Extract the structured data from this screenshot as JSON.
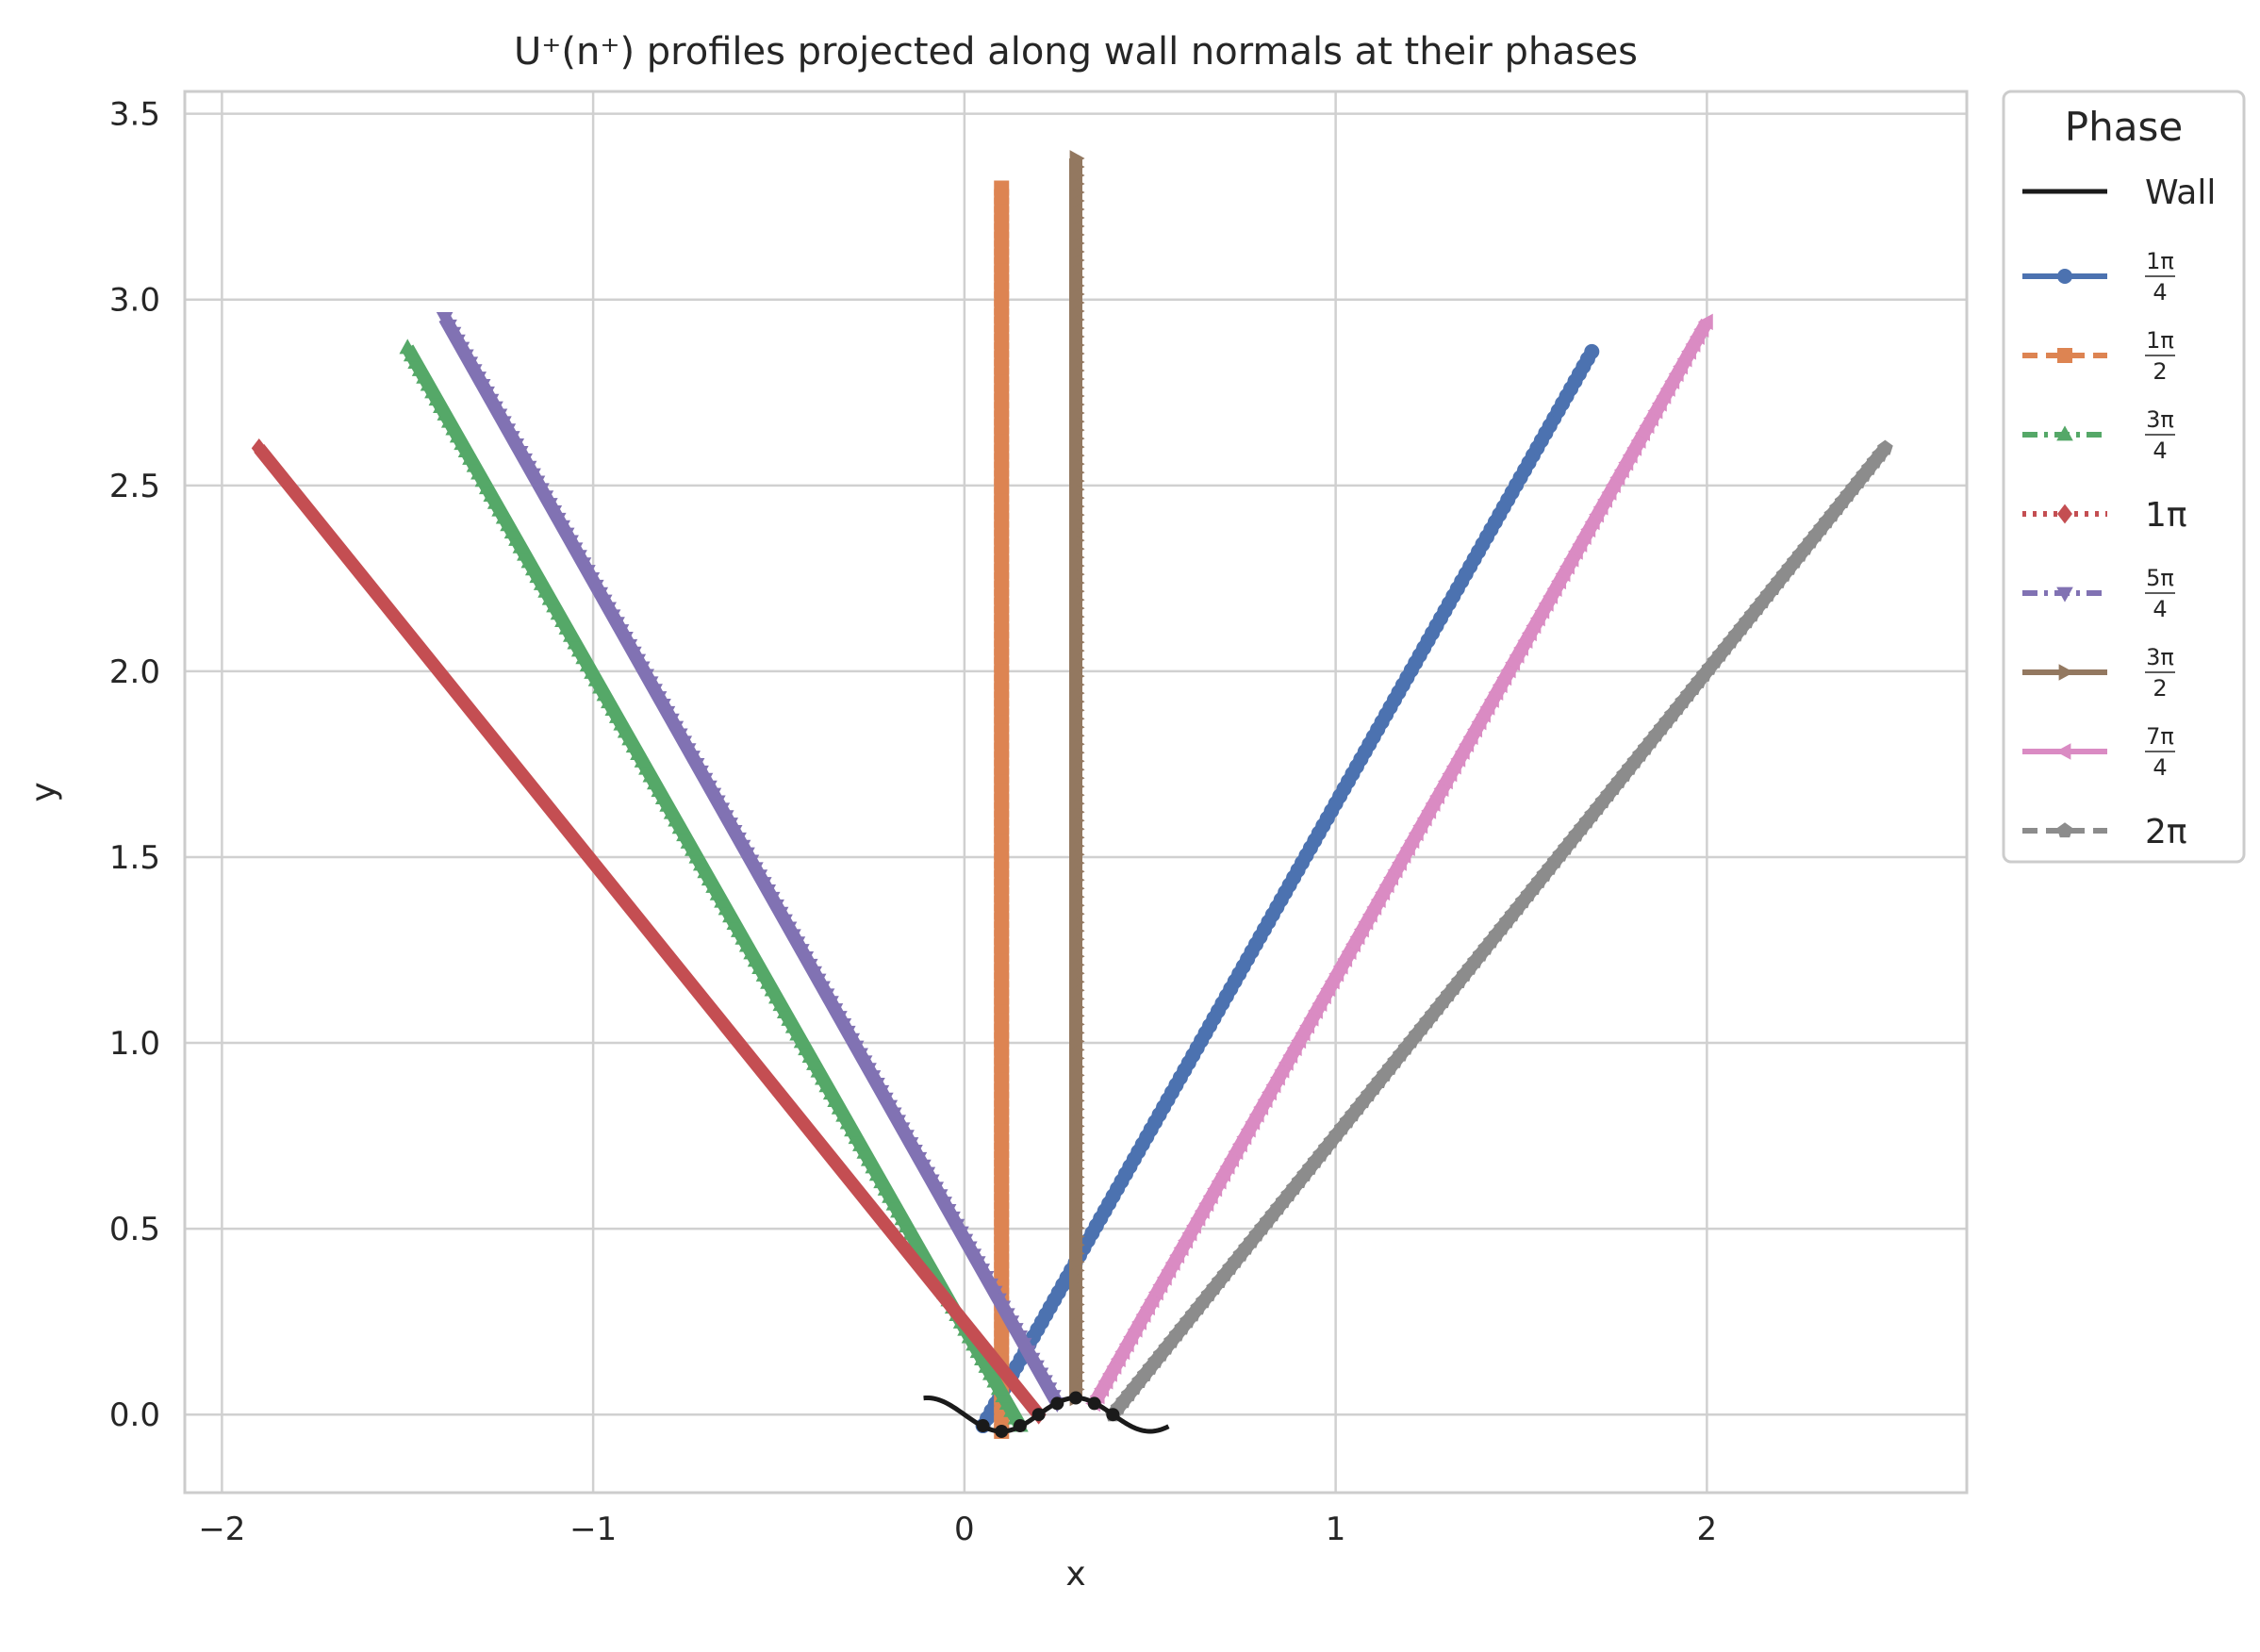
{
  "chart_data": {
    "type": "line",
    "title": "U⁺(n⁺) profiles projected along wall normals at their phases",
    "xlabel": "x",
    "ylabel": "y",
    "xlim": [
      -2.1,
      2.7
    ],
    "ylim": [
      -0.21,
      3.56
    ],
    "xticks": [
      -2,
      -1,
      0,
      1,
      2
    ],
    "xtick_labels": [
      "−2",
      "−1",
      "0",
      "1",
      "2"
    ],
    "yticks": [
      0.0,
      0.5,
      1.0,
      1.5,
      2.0,
      2.5,
      3.0,
      3.5
    ],
    "ytick_labels": [
      "0.0",
      "0.5",
      "1.0",
      "1.5",
      "2.0",
      "2.5",
      "3.0",
      "3.5"
    ],
    "grid": true,
    "legend": {
      "title": "Phase",
      "placement": "outside-right"
    },
    "wall": {
      "name": "Wall",
      "color": "#1a1a1a",
      "x_range": [
        -0.11,
        0.55
      ],
      "amplitude": 0.045,
      "marker_points": [
        [
          0.05,
          -0.03
        ],
        [
          0.1,
          -0.045
        ],
        [
          0.15,
          -0.03
        ],
        [
          0.2,
          0.0
        ],
        [
          0.25,
          0.03
        ],
        [
          0.3,
          0.045
        ],
        [
          0.35,
          0.03
        ],
        [
          0.4,
          0.0
        ]
      ]
    },
    "series": [
      {
        "name": "1π/4",
        "numerator": "1π",
        "denominator": "4",
        "color": "#4c72b0",
        "marker": "circle",
        "dash": "solid",
        "x": [
          0.05,
          1.69
        ],
        "y": [
          -0.03,
          2.86
        ]
      },
      {
        "name": "1π/2",
        "numerator": "1π",
        "denominator": "2",
        "color": "#dd8452",
        "marker": "square",
        "dash": "dashed",
        "x": [
          0.1,
          0.1
        ],
        "y": [
          -0.045,
          3.3
        ]
      },
      {
        "name": "3π/4",
        "numerator": "3π",
        "denominator": "4",
        "color": "#55a868",
        "marker": "triangle-up",
        "dash": "dashdot",
        "x": [
          0.15,
          -1.5
        ],
        "y": [
          -0.03,
          2.87
        ]
      },
      {
        "name": "1π",
        "color": "#c44e52",
        "marker": "diamond",
        "dash": "dotted",
        "x": [
          0.2,
          -1.9
        ],
        "y": [
          0.0,
          2.6
        ]
      },
      {
        "name": "5π/4",
        "numerator": "5π",
        "denominator": "4",
        "color": "#8172b3",
        "marker": "triangle-down",
        "dash": "dashdot",
        "x": [
          0.25,
          -1.4
        ],
        "y": [
          0.03,
          2.95
        ]
      },
      {
        "name": "3π/2",
        "numerator": "3π",
        "denominator": "2",
        "color": "#937860",
        "marker": "triangle-right",
        "dash": "solid",
        "x": [
          0.3,
          0.3
        ],
        "y": [
          0.045,
          3.38
        ]
      },
      {
        "name": "7π/4",
        "numerator": "7π",
        "denominator": "4",
        "color": "#da8bc3",
        "marker": "triangle-left",
        "dash": "solid",
        "x": [
          0.35,
          2.0
        ],
        "y": [
          0.03,
          2.94
        ]
      },
      {
        "name": "2π",
        "color": "#8c8c8c",
        "marker": "pentagon",
        "dash": "dashed",
        "x": [
          0.4,
          2.48
        ],
        "y": [
          0.0,
          2.6
        ]
      }
    ]
  }
}
